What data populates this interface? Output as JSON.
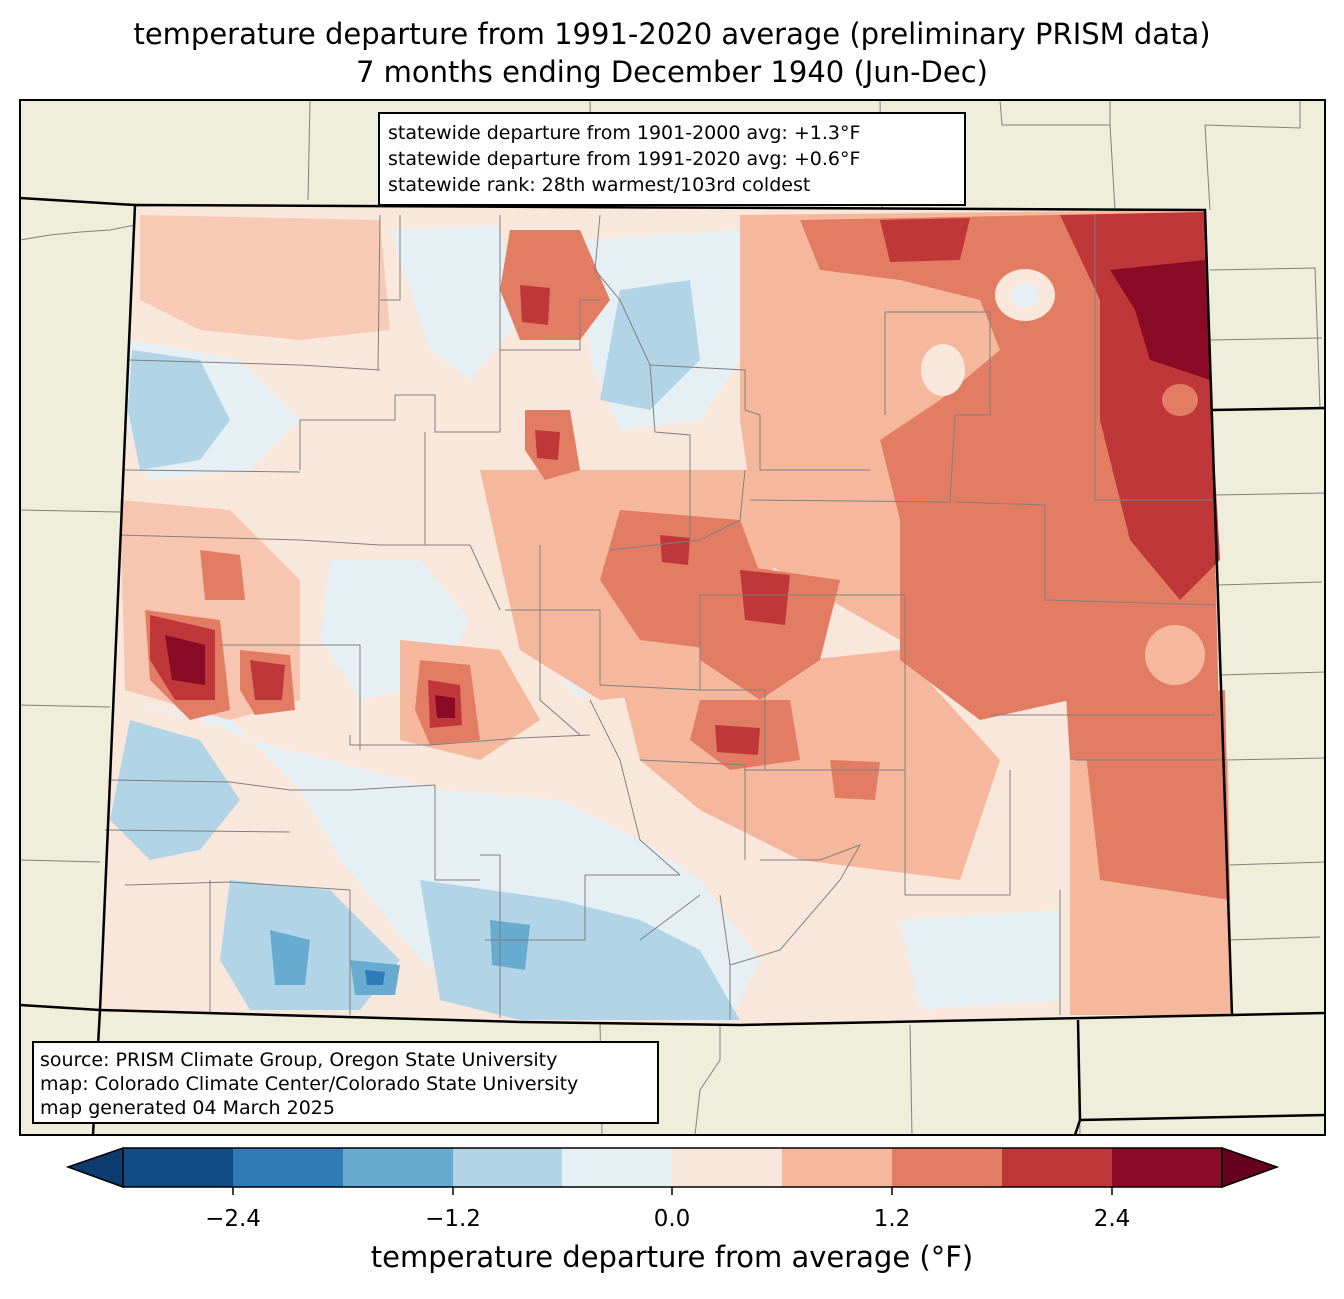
{
  "title_line1": "temperature departure from 1991-2020 average (preliminary PRISM data)",
  "title_line2": "7 months ending December 1940 (Jun-Dec)",
  "stats": {
    "line1": "statewide departure from 1901-2000 avg: +1.3°F",
    "line2": "statewide departure from 1991-2020 avg: +0.6°F",
    "line3": "statewide rank: 28th warmest/103rd coldest"
  },
  "source": {
    "line1": "source: PRISM Climate Group, Oregon State University",
    "line2": "map: Colorado Climate Center/Colorado State University",
    "line3": "map generated 04 March 2025"
  },
  "colorbar": {
    "label": "temperature departure from average (°F)",
    "ticks": [
      "−2.4",
      "−1.2",
      "0.0",
      "1.2",
      "2.4"
    ],
    "bins": [
      {
        "range": "< -3.0",
        "color": "#0b3b6f"
      },
      {
        "range": "-3.0 to -2.4",
        "color": "#134b87"
      },
      {
        "range": "-2.4 to -1.8",
        "color": "#2f7ab9"
      },
      {
        "range": "-1.8 to -1.2",
        "color": "#68abd0"
      },
      {
        "range": "-1.2 to -0.6",
        "color": "#b1d5e7"
      },
      {
        "range": "-0.6 to 0.0",
        "color": "#e6eff4"
      },
      {
        "range": "0.0 to 0.6",
        "color": "#fae7dc"
      },
      {
        "range": "0.6 to 1.2",
        "color": "#f6b89c"
      },
      {
        "range": "1.2 to 1.8",
        "color": "#e27d64"
      },
      {
        "range": "1.8 to 2.4",
        "color": "#c0373a"
      },
      {
        "range": "2.4 to 3.0",
        "color": "#8a0b25"
      },
      {
        "range": "> 3.0",
        "color": "#67001f"
      }
    ]
  },
  "colors": {
    "land": "#efeedb",
    "county_line": "#808080",
    "state_line": "#000000"
  }
}
